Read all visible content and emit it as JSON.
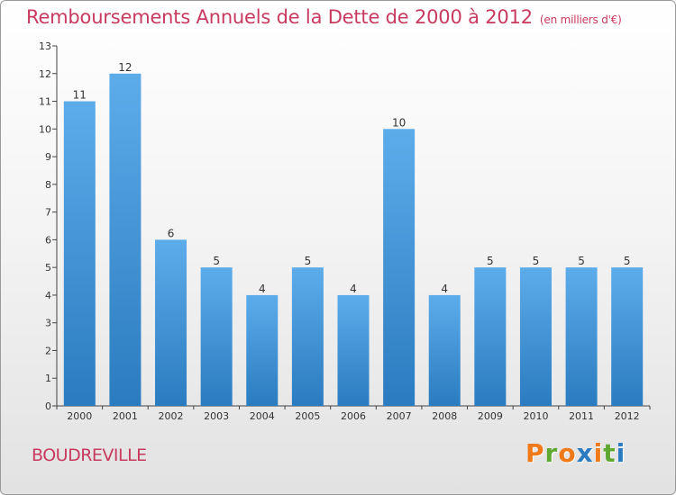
{
  "header": {
    "title": "Remboursements Annuels de la Dette de 2000 à 2012",
    "subtitle": "(en milliers d'€)"
  },
  "footer": {
    "commune": "BOUDREVILLE",
    "logo_text": "Proxiti"
  },
  "colors": {
    "title": "#c83a5f",
    "bar_light": "#5dacea",
    "bar_dark": "#2a7bc0",
    "logo_letters": [
      "#f07a1a",
      "#5fa831",
      "#f07a1a",
      "#2a7bc0",
      "#f07a1a",
      "#5fa831",
      "#2a7bc0"
    ]
  },
  "chart_data": {
    "type": "bar",
    "title": "Remboursements Annuels de la Dette de 2000 à 2012",
    "categories": [
      "2000",
      "2001",
      "2002",
      "2003",
      "2004",
      "2005",
      "2006",
      "2007",
      "2008",
      "2009",
      "2010",
      "2011",
      "2012"
    ],
    "values": [
      11,
      12,
      6,
      5,
      4,
      5,
      4,
      10,
      4,
      5,
      5,
      5,
      5
    ],
    "ylim": [
      0,
      13
    ],
    "yticks": [
      0,
      1,
      2,
      3,
      4,
      5,
      6,
      7,
      8,
      9,
      10,
      11,
      12,
      13
    ],
    "grid": false,
    "legend": "none"
  }
}
